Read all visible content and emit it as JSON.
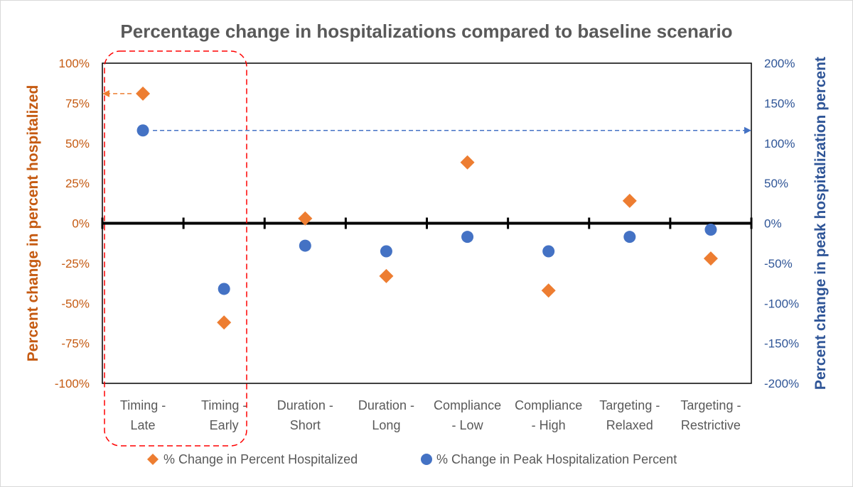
{
  "chart_data": {
    "type": "scatter",
    "title": "Percentage change in hospitalizations compared to baseline scenario",
    "categories": [
      [
        "Timing -",
        "Late"
      ],
      [
        "Timing -",
        "Early"
      ],
      [
        "Duration -",
        "Short"
      ],
      [
        "Duration -",
        "Long"
      ],
      [
        "Compliance",
        "- Low"
      ],
      [
        "Compliance",
        "- High"
      ],
      [
        "Targeting -",
        "Relaxed"
      ],
      [
        "Targeting -",
        "Restrictive"
      ]
    ],
    "ylabel": "Percent change in percent hospitalized",
    "y2label": "Percent change in peak hospitalization percent",
    "ylim": [
      -100,
      100
    ],
    "y2lim": [
      -200,
      200
    ],
    "yticks": [
      "100%",
      "75%",
      "50%",
      "25%",
      "0%",
      "-25%",
      "-50%",
      "-75%",
      "-100%"
    ],
    "y2ticks": [
      "200%",
      "150%",
      "100%",
      "50%",
      "0%",
      "-50%",
      "-100%",
      "-150%",
      "-200%"
    ],
    "series": [
      {
        "name": "% Change in Percent Hospitalized",
        "axis": "left",
        "marker": "diamond",
        "color": "#ed7d31",
        "values": [
          81,
          -62,
          3,
          -33,
          38,
          -42,
          14,
          -22
        ]
      },
      {
        "name": "% Change in Peak Hospitalization Percent",
        "axis": "right",
        "marker": "circle",
        "color": "#4472c4",
        "values": [
          116,
          -82,
          -28,
          -35,
          -17,
          -35,
          -17,
          -8
        ]
      }
    ],
    "annotations": [
      {
        "type": "highlight-box",
        "around": [
          "Timing - Late",
          "Timing - Early"
        ],
        "color": "#ff0000"
      },
      {
        "type": "arrow",
        "series": "% Change in Percent Hospitalized",
        "point": 0,
        "direction": "to-left-axis",
        "color": "#ed7d31"
      },
      {
        "type": "arrow",
        "series": "% Change in Peak Hospitalization Percent",
        "point": 0,
        "direction": "to-right-axis",
        "color": "#4472c4"
      }
    ],
    "legend": "bottom"
  }
}
